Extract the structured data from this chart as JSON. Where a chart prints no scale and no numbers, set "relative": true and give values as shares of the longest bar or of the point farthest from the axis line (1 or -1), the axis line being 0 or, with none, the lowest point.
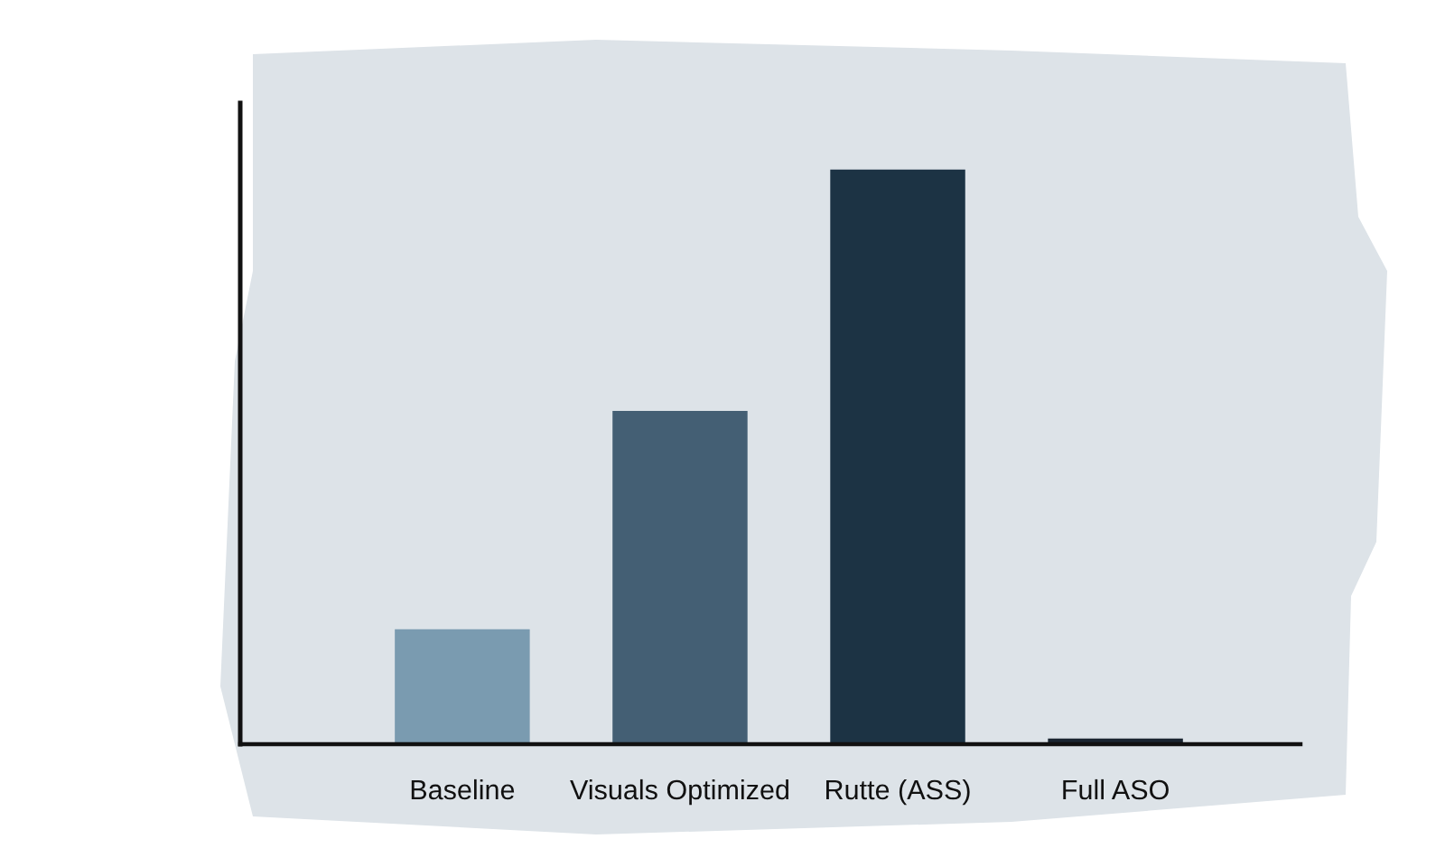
{
  "chart_data": {
    "type": "bar",
    "relative": true,
    "categories": [
      "Baseline",
      "Visuals Optimized",
      "Rutte (ASS)",
      "Full ASO"
    ],
    "values": [
      0.2,
      0.58,
      1,
      0.01
    ],
    "colors": [
      "#7a9bb0",
      "#445f74",
      "#1c3344",
      "#1a2530"
    ]
  }
}
